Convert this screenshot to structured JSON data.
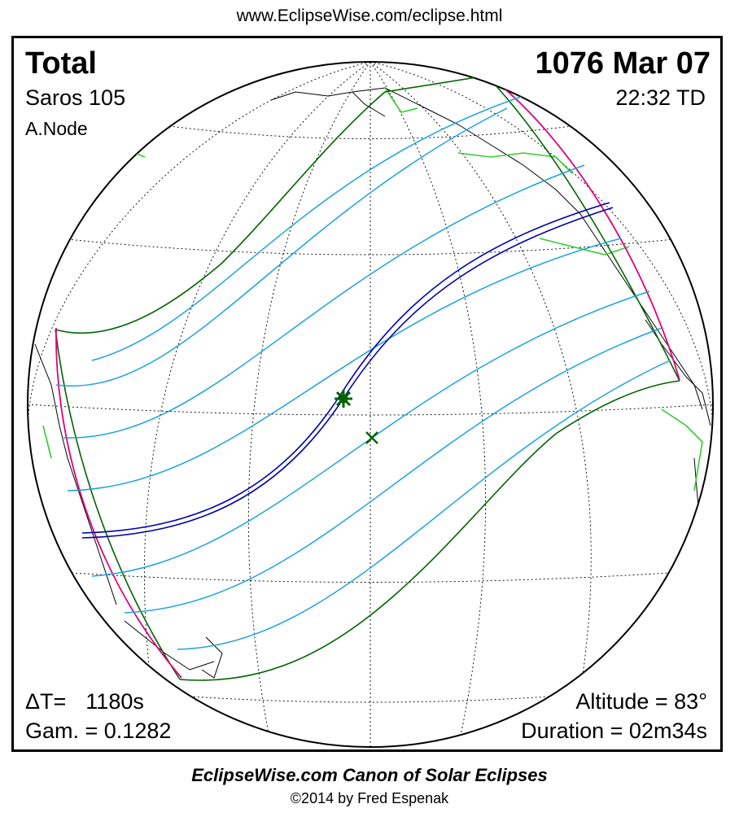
{
  "header": {
    "url": "www.EclipseWise.com/eclipse.html"
  },
  "eclipse": {
    "type": "Total",
    "date": "1076 Mar 07",
    "saros": "Saros 105",
    "time": "22:32 TD",
    "node": "A.Node",
    "delta_t_label": "ΔT=",
    "delta_t_value": "1180s",
    "gamma": "Gam. = 0.1282",
    "altitude": "Altitude = 83°",
    "duration": "Duration = 02m34s"
  },
  "footer": {
    "title": "EclipseWise.com Canon of Solar Eclipses",
    "copyright": "©2014 by Fred Espenak"
  },
  "colors": {
    "central_path": "#0000aa",
    "penumbra_limits": "#006400",
    "magnitude_lines": "#1aa3dd",
    "rise_set_curves": "#e0007a",
    "coastline_highlight": "#33cc33",
    "graticule": "#000000"
  },
  "markers": {
    "greatest_eclipse": "star-icon",
    "sub_solar_point": "x-icon"
  }
}
